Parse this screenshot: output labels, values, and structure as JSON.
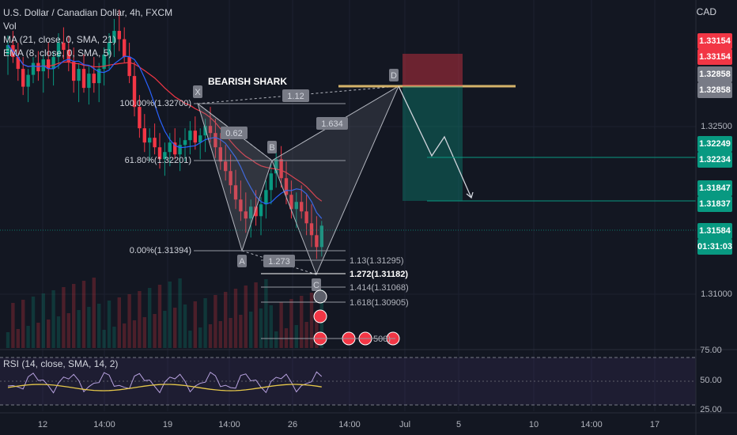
{
  "legend": {
    "symbol": "U.S. Dollar / Canadian Dollar, 4h, FXCM",
    "vol": "Vol",
    "ma": "MA (21, close, 0, SMA, 21)",
    "ema": "EMA (8, close, 0, SMA, 5)"
  },
  "currency": "CAD",
  "pattern_title": "BEARISH SHARK",
  "rsi_label": "RSI (14, close, SMA, 14, 2)",
  "price_tags": [
    {
      "top": "1.33154",
      "bottom": "1.33154",
      "color": "#f23645"
    },
    {
      "top": "1.32858",
      "bottom": "1.32858",
      "color": "#787b86"
    },
    {
      "top": "1.32249",
      "bottom": "1.32234",
      "color": "#089981"
    },
    {
      "top": "1.31847",
      "bottom": "1.31837",
      "color": "#089981"
    },
    {
      "top": "1.31584",
      "bottom": "01:31:03",
      "color": "#089981"
    }
  ],
  "price_axis_ticks": [
    "1.32500",
    "1.31000"
  ],
  "rsi_axis_ticks": [
    "75.00",
    "50.00",
    "25.00"
  ],
  "time_axis_ticks": [
    "12",
    "14:00",
    "19",
    "14:00",
    "26",
    "14:00",
    "Jul",
    "5",
    "10",
    "14:00",
    "17"
  ],
  "pattern_points": [
    "X",
    "A",
    "B",
    "C",
    "D"
  ],
  "pattern_ratios": [
    "0.62",
    "1.12",
    "1.634",
    "1.273"
  ],
  "fib_levels": [
    {
      "label": "100.00%(1.32700)"
    },
    {
      "label": "61.80%(1.32201)"
    },
    {
      "label": "0.00%(1.31394)"
    }
  ],
  "extension_levels": [
    {
      "label": "1.13(1.31295)",
      "bold": false
    },
    {
      "label": "1.272(1.31182)",
      "bold": true
    },
    {
      "label": "1.414(1.31068)",
      "bold": false
    },
    {
      "label": "1.618(1.30905)",
      "bold": false
    }
  ],
  "event_partial_text": "500)",
  "colors": {
    "up": "#089981",
    "down": "#f23645",
    "ma": "#f23645",
    "ema": "#2962ff",
    "rsi": "#b8a2e0",
    "rsi_ma": "#e6c84a",
    "target": "#d4b36a"
  },
  "chart_data": {
    "type": "candlestick",
    "title": "U.S. Dollar / Canadian Dollar, 4h, FXCM",
    "y_unit": "CAD",
    "ylim": [
      1.3055,
      1.3348
    ],
    "ohlc_approx": [
      [
        1.3302,
        1.3318,
        1.3285,
        1.331
      ],
      [
        1.331,
        1.3322,
        1.3295,
        1.33
      ],
      [
        1.33,
        1.3312,
        1.328,
        1.329
      ],
      [
        1.329,
        1.33,
        1.3268,
        1.3275
      ],
      [
        1.3275,
        1.329,
        1.3262,
        1.3285
      ],
      [
        1.3285,
        1.33,
        1.3278,
        1.3295
      ],
      [
        1.3295,
        1.3305,
        1.328,
        1.3288
      ],
      [
        1.3288,
        1.3302,
        1.327,
        1.3298
      ],
      [
        1.3298,
        1.3312,
        1.3282,
        1.329
      ],
      [
        1.329,
        1.3305,
        1.3276,
        1.33
      ],
      [
        1.33,
        1.332,
        1.329,
        1.3312
      ],
      [
        1.3312,
        1.3325,
        1.3298,
        1.3306
      ],
      [
        1.3306,
        1.3318,
        1.3288,
        1.3296
      ],
      [
        1.3296,
        1.3308,
        1.327,
        1.328
      ],
      [
        1.328,
        1.3295,
        1.3262,
        1.329
      ],
      [
        1.329,
        1.3302,
        1.327,
        1.3274
      ],
      [
        1.3274,
        1.3292,
        1.326,
        1.3286
      ],
      [
        1.3286,
        1.33,
        1.327,
        1.3278
      ],
      [
        1.3278,
        1.3295,
        1.3262,
        1.329
      ],
      [
        1.329,
        1.3308,
        1.3276,
        1.3302
      ],
      [
        1.3302,
        1.332,
        1.329,
        1.3312
      ],
      [
        1.3312,
        1.3332,
        1.33,
        1.3322
      ],
      [
        1.3322,
        1.334,
        1.3305,
        1.3315
      ],
      [
        1.3315,
        1.3325,
        1.3295,
        1.33
      ],
      [
        1.33,
        1.3312,
        1.3278,
        1.3284
      ],
      [
        1.3284,
        1.3296,
        1.325,
        1.3258
      ],
      [
        1.3258,
        1.3268,
        1.3232,
        1.324
      ],
      [
        1.324,
        1.3252,
        1.322,
        1.3228
      ],
      [
        1.3228,
        1.324,
        1.3212,
        1.3232
      ],
      [
        1.3232,
        1.3244,
        1.3218,
        1.3224
      ],
      [
        1.3224,
        1.3236,
        1.3206,
        1.3214
      ],
      [
        1.3214,
        1.3228,
        1.32,
        1.322
      ],
      [
        1.322,
        1.3236,
        1.3208,
        1.3228
      ],
      [
        1.3228,
        1.324,
        1.3214,
        1.3218
      ],
      [
        1.3218,
        1.3232,
        1.3204,
        1.3226
      ],
      [
        1.3226,
        1.324,
        1.3212,
        1.323
      ],
      [
        1.323,
        1.3246,
        1.3218,
        1.3238
      ],
      [
        1.3238,
        1.325,
        1.3222,
        1.3228
      ],
      [
        1.3228,
        1.324,
        1.3214,
        1.3234
      ],
      [
        1.3234,
        1.3248,
        1.322,
        1.3242
      ],
      [
        1.3242,
        1.3258,
        1.3228,
        1.3236
      ],
      [
        1.3236,
        1.3248,
        1.3215,
        1.3224
      ],
      [
        1.3224,
        1.3236,
        1.3205,
        1.3212
      ],
      [
        1.3212,
        1.3226,
        1.3196,
        1.3204
      ],
      [
        1.3204,
        1.3218,
        1.3185,
        1.3192
      ],
      [
        1.3192,
        1.3205,
        1.3172,
        1.318
      ],
      [
        1.318,
        1.3196,
        1.3162,
        1.317
      ],
      [
        1.317,
        1.3186,
        1.3152,
        1.3164
      ],
      [
        1.3164,
        1.318,
        1.3148,
        1.3174
      ],
      [
        1.3174,
        1.3188,
        1.3158,
        1.3166
      ],
      [
        1.3166,
        1.3182,
        1.315,
        1.3176
      ],
      [
        1.3176,
        1.3196,
        1.3164,
        1.3188
      ],
      [
        1.3188,
        1.321,
        1.3176,
        1.3202
      ],
      [
        1.3202,
        1.3222,
        1.319,
        1.3214
      ],
      [
        1.3214,
        1.3225,
        1.319,
        1.3198
      ],
      [
        1.3198,
        1.3212,
        1.3176,
        1.3184
      ],
      [
        1.3184,
        1.3196,
        1.3164,
        1.3172
      ],
      [
        1.3172,
        1.3186,
        1.3156,
        1.3178
      ],
      [
        1.3178,
        1.3192,
        1.3164,
        1.317
      ],
      [
        1.317,
        1.3184,
        1.315,
        1.316
      ],
      [
        1.316,
        1.3176,
        1.314,
        1.315
      ],
      [
        1.315,
        1.3166,
        1.313,
        1.314
      ],
      [
        1.314,
        1.3162,
        1.3132,
        1.3158
      ]
    ],
    "targets": [
      1.33154,
      1.32858,
      1.32249,
      1.32234,
      1.31847,
      1.31837,
      1.31584
    ],
    "rsi": {
      "ylim": [
        25,
        75
      ],
      "levels": [
        70,
        50,
        30
      ]
    }
  }
}
